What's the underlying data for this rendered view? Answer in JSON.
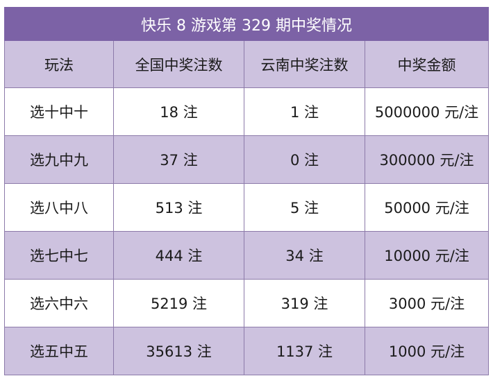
{
  "table": {
    "title": "快乐 8 游戏第 329 期中奖情况",
    "headers": [
      "玩法",
      "全国中奖注数",
      "云南中奖注数",
      "中奖金额"
    ],
    "rows": [
      [
        "选十中十",
        "18 注",
        "1 注",
        "5000000 元/注"
      ],
      [
        "选九中九",
        "37 注",
        "0 注",
        "300000 元/注"
      ],
      [
        "选八中八",
        "513 注",
        "5 注",
        "50000 元/注"
      ],
      [
        "选七中七",
        "444 注",
        "34 注",
        "10000 元/注"
      ],
      [
        "选六中六",
        "5219 注",
        "319 注",
        "3000 元/注"
      ],
      [
        "选五中五",
        "35613 注",
        "1137 注",
        "1000 元/注"
      ]
    ]
  },
  "colors": {
    "title_bg": "#7c62a6",
    "shaded_row_bg": "#cdc2df",
    "border": "#8c7aa9"
  }
}
